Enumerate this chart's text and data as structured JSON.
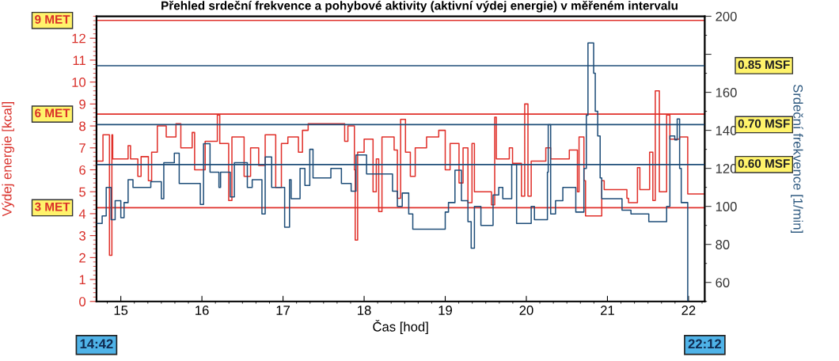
{
  "chart_data": {
    "type": "step",
    "title": "Přehled srdeční frekvence a pohybové aktivity (aktivní výdej energie) v měřeném intervalu",
    "xlabel": "Čas [hod]",
    "ylabel": "Výdej energie [kcal]",
    "y2label": "Srdeční frekvence [1/min]",
    "xlim": [
      14.7,
      22.2
    ],
    "xticks": [
      15,
      16,
      17,
      18,
      19,
      20,
      21,
      22
    ],
    "ylim": [
      0,
      13
    ],
    "yticks": [
      0,
      1,
      2,
      3,
      4,
      5,
      6,
      7,
      8,
      9,
      10,
      11,
      12
    ],
    "y2lim": [
      50,
      200
    ],
    "y2ticks": [
      60,
      80,
      100,
      120,
      140,
      160,
      {
        "value": 180,
        "label": null
      },
      200
    ],
    "grid": false,
    "line_style": "solid",
    "marker": "none",
    "series": [
      {
        "color": "#e0302a",
        "axis": "y",
        "x": [
          14.7,
          14.78,
          14.86,
          14.89,
          14.9,
          15.09,
          15.12,
          15.21,
          15.25,
          15.34,
          15.38,
          15.45,
          15.56,
          15.68,
          15.74,
          15.88,
          15.91,
          16.04,
          16.19,
          16.22,
          16.33,
          16.37,
          16.52,
          16.6,
          16.7,
          16.78,
          16.91,
          16.98,
          17.06,
          17.19,
          17.24,
          17.31,
          17.76,
          17.8,
          17.88,
          17.89,
          17.92,
          18.0,
          18.11,
          18.15,
          18.18,
          18.22,
          18.37,
          18.41,
          18.45,
          18.51,
          18.57,
          18.63,
          18.77,
          18.92,
          19.0,
          19.06,
          19.17,
          19.22,
          19.28,
          19.33,
          19.36,
          19.57,
          19.61,
          19.63,
          19.79,
          19.83,
          19.94,
          19.98,
          20.02,
          20.06,
          20.24,
          20.3,
          20.53,
          20.63,
          20.65,
          20.71,
          20.73,
          20.93,
          20.96,
          21.24,
          21.26,
          21.37,
          21.4,
          21.52,
          21.56,
          21.59,
          21.64,
          21.73,
          21.77,
          21.89,
          21.99,
          22.2
        ],
        "values": [
          6.4,
          7.6,
          2.1,
          7.6,
          6.5,
          7.1,
          6.5,
          5.7,
          6.6,
          5.5,
          6.8,
          8.0,
          7.5,
          8.1,
          7.0,
          7.7,
          6.0,
          7.3,
          8.5,
          7.2,
          4.6,
          7.5,
          5.7,
          7.0,
          6.2,
          7.6,
          5.2,
          7.2,
          7.5,
          6.8,
          7.8,
          8.1,
          7.3,
          8.0,
          6.0,
          2.8,
          6.8,
          7.4,
          5.0,
          6.5,
          4.1,
          7.5,
          6.9,
          4.7,
          8.3,
          6.8,
          5.7,
          7.0,
          7.5,
          7.8,
          6.0,
          7.2,
          5.4,
          7.0,
          4.5,
          7.2,
          5.0,
          4.4,
          8.4,
          6.5,
          7.0,
          6.3,
          4.8,
          9.0,
          4.8,
          6.4,
          7.0,
          6.5,
          6.9,
          5.0,
          7.5,
          5.5,
          3.9,
          5.5,
          5.1,
          4.7,
          4.5,
          6.1,
          5.1,
          6.8,
          4.6,
          9.6,
          5.0,
          8.5,
          7.4,
          7.5,
          4.9,
          4.9
        ]
      },
      {
        "color": "#1f4e79",
        "axis": "y2",
        "x": [
          14.7,
          14.77,
          14.82,
          14.88,
          14.93,
          15.0,
          15.04,
          15.09,
          15.15,
          15.37,
          15.5,
          15.53,
          15.66,
          15.72,
          15.98,
          16.02,
          16.1,
          16.21,
          16.23,
          16.35,
          16.4,
          16.56,
          16.62,
          16.74,
          16.78,
          16.86,
          17.02,
          17.08,
          17.1,
          17.21,
          17.27,
          17.33,
          17.37,
          17.59,
          17.72,
          17.84,
          17.9,
          18.03,
          18.35,
          18.41,
          18.47,
          18.55,
          18.6,
          19.0,
          19.04,
          19.12,
          19.2,
          19.28,
          19.32,
          19.36,
          19.44,
          19.59,
          19.66,
          19.71,
          19.82,
          19.88,
          20.06,
          20.1,
          20.26,
          20.27,
          20.3,
          20.36,
          20.45,
          20.61,
          20.71,
          20.74,
          20.76,
          20.83,
          20.85,
          20.88,
          20.91,
          20.93,
          21.18,
          21.29,
          21.51,
          21.73,
          21.77,
          21.83,
          21.86,
          21.89,
          21.91,
          21.99
        ],
        "values": [
          91,
          95,
          110,
          93,
          103,
          94,
          102,
          114,
          110,
          113,
          104,
          123,
          128,
          112,
          101,
          133,
          118,
          110,
          118,
          105,
          123,
          110,
          114,
          96,
          126,
          110,
          89,
          114,
          104,
          120,
          111,
          130,
          115,
          120,
          112,
          108,
          127,
          117,
          108,
          100,
          107,
          96,
          88,
          97,
          102,
          119,
          103,
          92,
          78,
          100,
          90,
          106,
          110,
          104,
          122,
          91,
          100,
          93,
          118,
          143,
          96,
          103,
          110,
          97,
          120,
          148,
          186,
          170,
          150,
          137,
          115,
          104,
          98,
          96,
          92,
          100,
          137,
          135,
          146,
          120,
          102,
          50
        ]
      }
    ],
    "ref_lines": [
      {
        "axis": "y",
        "value": 12.81,
        "label": "9 MET",
        "color": "#e0302a"
      },
      {
        "axis": "y",
        "value": 8.54,
        "label": "6 MET",
        "color": "#e0302a"
      },
      {
        "axis": "y",
        "value": 4.27,
        "label": "3 MET",
        "color": "#e0302a"
      },
      {
        "axis": "y2",
        "value": 174,
        "label": "0.85 MSF",
        "color": "#1f4e79"
      },
      {
        "axis": "y2",
        "value": 143,
        "label": "0.70 MSF",
        "color": "#1f4e79"
      },
      {
        "axis": "y2",
        "value": 122,
        "label": "0.60 MSF",
        "color": "#1f4e79"
      }
    ],
    "annotations": [
      "14:42",
      "22:12"
    ]
  }
}
